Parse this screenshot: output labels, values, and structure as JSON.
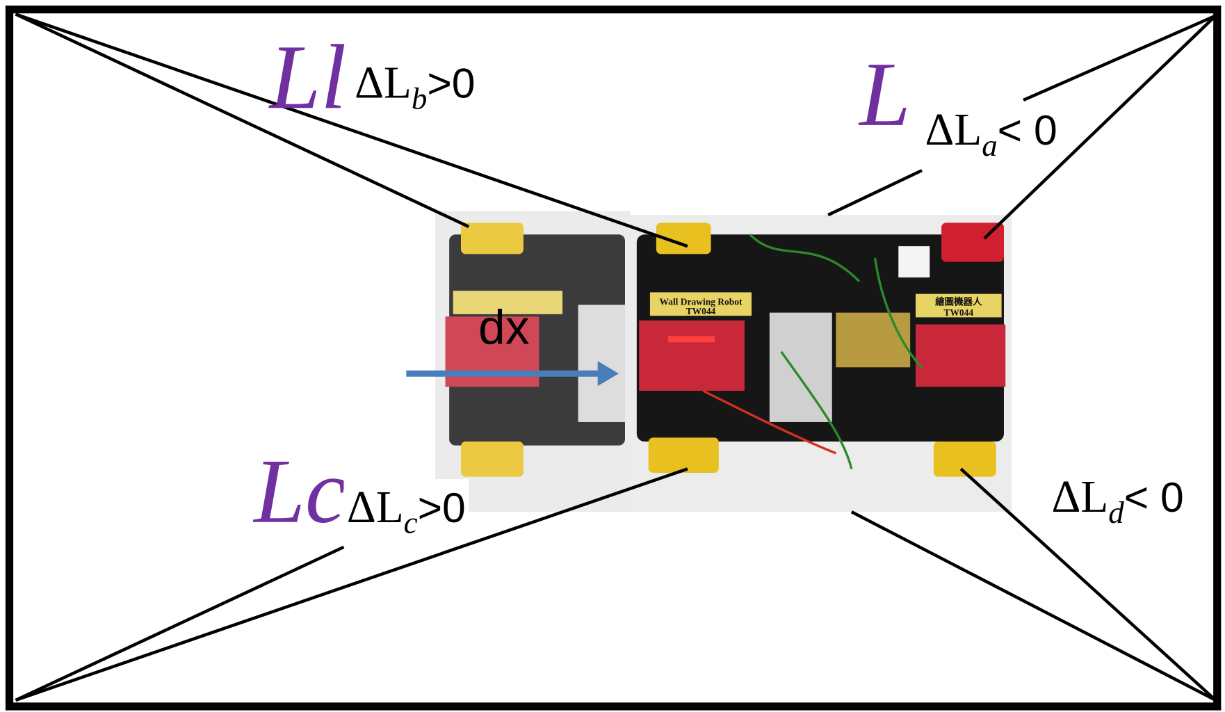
{
  "purple_labels": [
    "Ll",
    "L",
    "Lc"
  ],
  "delta_labels": [
    {
      "symbol": "ΔL",
      "sub": "b",
      "relation": ">0"
    },
    {
      "symbol": "ΔL",
      "sub": "a",
      "relation": "< 0"
    },
    {
      "symbol": "ΔL",
      "sub": "c",
      "relation": ">0"
    },
    {
      "symbol": "ΔL",
      "sub": "d",
      "relation": "< 0"
    }
  ],
  "arrow_label": "dx",
  "photo": {
    "labels": [
      "Wall Drawing Robot",
      "TW044",
      "繪圖機器人",
      "TW044"
    ]
  }
}
